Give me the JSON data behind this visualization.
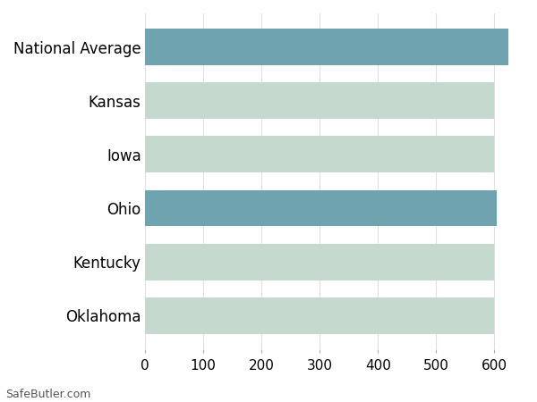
{
  "categories": [
    "Oklahoma",
    "Kentucky",
    "Ohio",
    "Iowa",
    "Kansas",
    "National Average"
  ],
  "values": [
    600,
    600,
    604,
    600,
    600,
    624
  ],
  "bar_colors": [
    "#c5d9cf",
    "#c5d9cf",
    "#6fa3b0",
    "#c5d9cf",
    "#c5d9cf",
    "#6fa3b0"
  ],
  "bg_color": "#ffffff",
  "grid_color": "#e0e0e0",
  "xlim": [
    0,
    650
  ],
  "xticks": [
    0,
    100,
    200,
    300,
    400,
    500,
    600
  ],
  "footer_text": "SafeButler.com",
  "tick_label_fontsize": 11,
  "category_fontsize": 12,
  "bar_height": 0.68
}
